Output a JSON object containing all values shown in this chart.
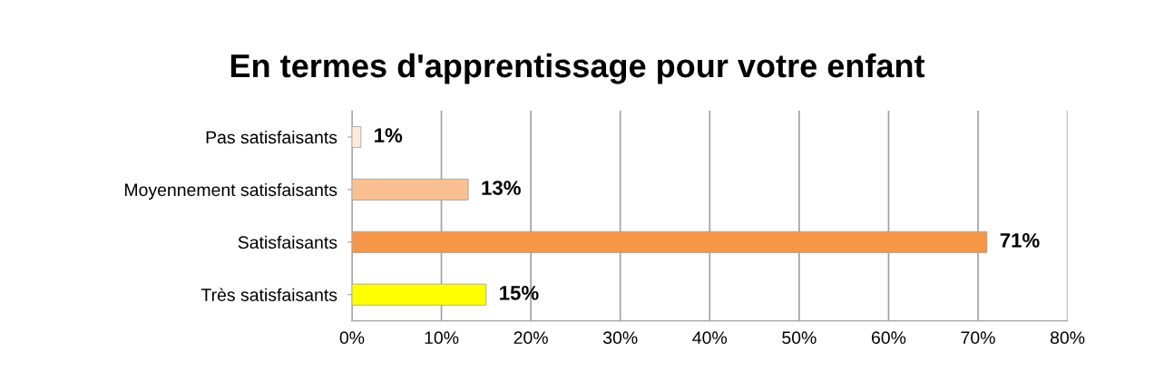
{
  "chart_data": {
    "type": "bar",
    "orientation": "horizontal",
    "title": "En termes d'apprentissage pour votre enfant",
    "categories": [
      "Pas satisfaisants",
      "Moyennement satisfaisants",
      "Satisfaisants",
      "Très satisfaisants"
    ],
    "values": [
      1,
      13,
      71,
      15
    ],
    "colors": [
      "#fde9d9",
      "#fac090",
      "#f79646",
      "#ffff00"
    ],
    "value_labels": [
      "1%",
      "13%",
      "71%",
      "15%"
    ],
    "xlim": [
      0,
      80
    ],
    "xticks": [
      {
        "value": 0,
        "label": "0%"
      },
      {
        "value": 10,
        "label": "10%"
      },
      {
        "value": 20,
        "label": "20%"
      },
      {
        "value": 30,
        "label": "30%"
      },
      {
        "value": 40,
        "label": "40%"
      },
      {
        "value": 50,
        "label": "50%"
      },
      {
        "value": 60,
        "label": "60%"
      },
      {
        "value": 70,
        "label": "70%"
      },
      {
        "value": 80,
        "label": "80%"
      }
    ],
    "grid": "x",
    "legend": false
  }
}
